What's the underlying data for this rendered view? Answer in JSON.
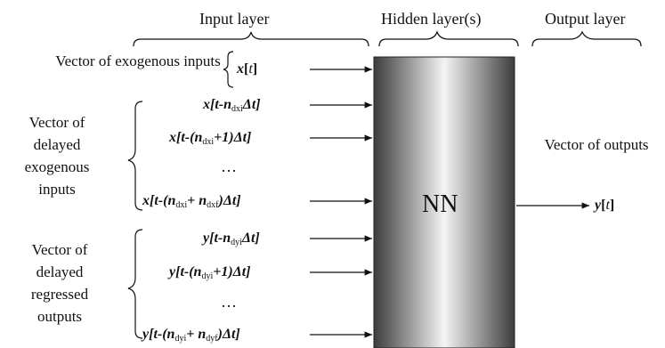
{
  "headers": {
    "input_layer": "Input layer",
    "hidden_layers": "Hidden layer(s)",
    "output_layer": "Output layer"
  },
  "groups": {
    "exogenous_vector": "Vector of exogenous inputs",
    "delayed_exogenous": "Vector of delayed exogenous inputs",
    "delayed_outputs": "Vector of delayed regressed outputs",
    "outputs_vector": "Vector of outputs"
  },
  "nn_label": "NN",
  "ellipsis": "…",
  "signals": {
    "x_t": {
      "var": "x",
      "open": "[",
      "t": "t",
      "close": "]"
    },
    "x_dxi": {
      "var": "x",
      "prefix": "[t-",
      "n": "n",
      "sub": "dxi",
      "suffix": "Δt]"
    },
    "x_dxi_plus1": {
      "var": "x",
      "prefix": "[t-(",
      "n": "n",
      "sub": "dxi",
      "suffix": "+1)Δt]"
    },
    "x_dxi_dxf": {
      "var": "x",
      "prefix": "[t-(",
      "n1": "n",
      "sub1": "dxi",
      "mid": "+ ",
      "n2": "n",
      "sub2": "dxf",
      "suffix": ")Δt]"
    },
    "y_dyi": {
      "var": "y",
      "prefix": "[t-",
      "n": "n",
      "sub": "dyi",
      "suffix": "Δt]"
    },
    "y_dyi_plus1": {
      "var": "y",
      "prefix": "[t-(",
      "n": "n",
      "sub": "dyi",
      "suffix": "+1)Δt]"
    },
    "y_dyi_dyf": {
      "var": "y",
      "prefix": "[t-(",
      "n1": "n",
      "sub1": "dyi",
      "mid": "+ ",
      "n2": "n",
      "sub2": "dyf",
      "suffix": ")Δt]"
    },
    "y_t": {
      "var": "y",
      "open": "[",
      "t": "t",
      "close": "]"
    }
  },
  "colors": {
    "box_dark": "#3a3a3a",
    "box_light": "#f4f4f4",
    "line": "#111111"
  }
}
